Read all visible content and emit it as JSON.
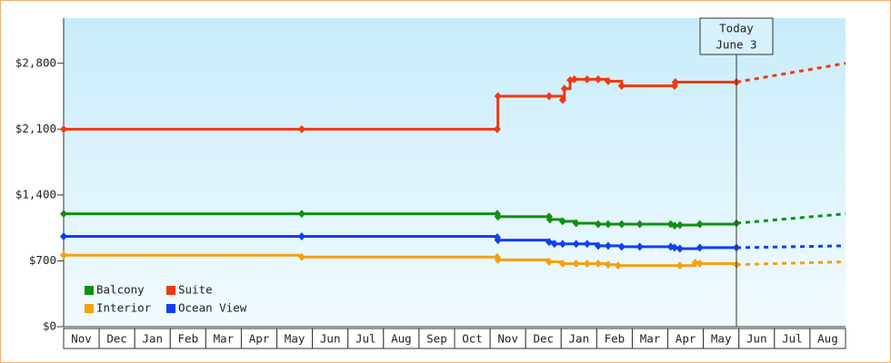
{
  "chart_data": {
    "type": "line",
    "step": true,
    "categories": [
      "Nov",
      "Dec",
      "Jan",
      "Feb",
      "Mar",
      "Apr",
      "May",
      "Jun",
      "Jul",
      "Aug",
      "Sep",
      "Oct",
      "Nov",
      "Dec",
      "Jan",
      "Feb",
      "Mar",
      "Apr",
      "May",
      "Jun",
      "Jul",
      "Aug"
    ],
    "xlim": [
      0,
      22
    ],
    "ylim": [
      0,
      3280
    ],
    "yticks": [
      {
        "value": 0,
        "label": "$0"
      },
      {
        "value": 700,
        "label": "$700"
      },
      {
        "value": 1400,
        "label": "$1,400"
      },
      {
        "value": 2100,
        "label": "$2,100"
      },
      {
        "value": 2800,
        "label": "$2,800"
      }
    ],
    "today": {
      "x": 18.93,
      "label": "Today",
      "date": "June 3"
    },
    "legend": "lower left",
    "series": [
      {
        "name": "Balcony",
        "color": "#109010",
        "x": [
          0,
          6.7,
          12.2,
          12.22,
          13.66,
          13.68,
          14.04,
          14.42,
          15.04,
          15.32,
          15.7,
          16.21,
          17.08,
          17.19,
          17.34,
          17.9,
          18.93
        ],
        "values": [
          1200,
          1200,
          1200,
          1170,
          1170,
          1140,
          1120,
          1100,
          1090,
          1090,
          1090,
          1090,
          1090,
          1075,
          1080,
          1090,
          1100
        ],
        "projection_end": 1200
      },
      {
        "name": "Suite",
        "color": "#f03a10",
        "x": [
          0,
          6.7,
          12.2,
          12.22,
          13.66,
          14.04,
          14.09,
          14.25,
          14.37,
          14.73,
          15.04,
          15.32,
          15.7,
          17.19,
          17.21,
          18.93
        ],
        "values": [
          2100,
          2100,
          2100,
          2450,
          2450,
          2410,
          2530,
          2620,
          2630,
          2630,
          2630,
          2610,
          2560,
          2560,
          2600,
          2600
        ],
        "projection_end": 2800
      },
      {
        "name": "Interior",
        "color": "#f5a010",
        "x": [
          0,
          6.7,
          12.2,
          12.22,
          13.66,
          14.04,
          14.42,
          14.73,
          15.04,
          15.32,
          15.6,
          17.34,
          17.77,
          17.9,
          18.93
        ],
        "values": [
          760,
          740,
          740,
          710,
          690,
          670,
          670,
          670,
          670,
          660,
          650,
          650,
          680,
          670,
          660
        ],
        "projection_end": 690
      },
      {
        "name": "Ocean View",
        "color": "#1040f0",
        "x": [
          0,
          6.7,
          12.2,
          12.22,
          13.66,
          13.81,
          14.04,
          14.42,
          14.73,
          15.04,
          15.32,
          15.7,
          16.21,
          17.08,
          17.19,
          17.34,
          17.9,
          18.93
        ],
        "values": [
          960,
          960,
          950,
          920,
          900,
          880,
          880,
          880,
          880,
          860,
          860,
          850,
          850,
          850,
          840,
          830,
          840,
          840
        ],
        "projection_end": 860
      }
    ]
  }
}
